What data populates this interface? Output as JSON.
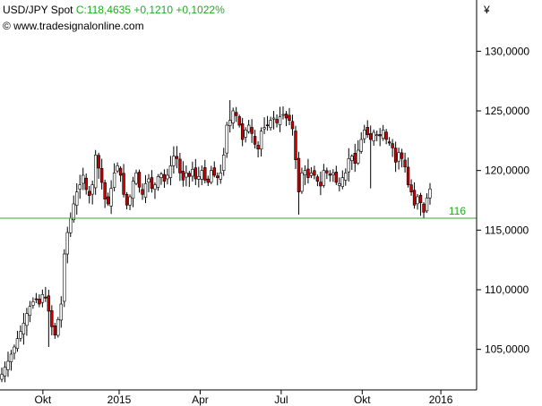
{
  "header": {
    "symbol": "USD/JPY Spot",
    "quote": "C:118,4635 +0,1210 +0,1022%",
    "source": "© www.tradesignalonline.com",
    "currency_symbol": "¥"
  },
  "colors": {
    "up_candle": "#ffffff",
    "down_candle": "#cc0000",
    "wick": "#000000",
    "support_line": "#33aa33",
    "support_label": "#22aa22",
    "axis": "#000000"
  },
  "chart_data": {
    "type": "candlestick",
    "title": "USD/JPY Spot",
    "ylabel": "",
    "xlabel": "",
    "ylim": [
      101.6,
      134.3
    ],
    "y_ticks": [
      {
        "value": 105,
        "label": "105,0000"
      },
      {
        "value": 110,
        "label": "110,0000"
      },
      {
        "value": 115,
        "label": "115,0000"
      },
      {
        "value": 120,
        "label": "120,0000"
      },
      {
        "value": 125,
        "label": "125,0000"
      },
      {
        "value": 130,
        "label": "130,0000"
      }
    ],
    "x_ticks": [
      {
        "pos": 0.09,
        "label": "Okt"
      },
      {
        "pos": 0.25,
        "label": "2015"
      },
      {
        "pos": 0.42,
        "label": "Apr"
      },
      {
        "pos": 0.59,
        "label": "Jul"
      },
      {
        "pos": 0.76,
        "label": "Okt"
      },
      {
        "pos": 0.925,
        "label": "2016"
      }
    ],
    "support_level": {
      "value": 116,
      "label": "116"
    },
    "last_close": 118.46,
    "closes": [
      102.9,
      103.5,
      104.0,
      104.6,
      105.2,
      105.9,
      106.5,
      107.2,
      108.0,
      108.6,
      109.0,
      109.2,
      108.8,
      109.6,
      109.3,
      108.2,
      106.9,
      106.2,
      107.5,
      108.8,
      113.0,
      114.8,
      116.0,
      117.2,
      118.2,
      118.8,
      119.6,
      118.4,
      117.9,
      118.8,
      121.3,
      120.2,
      119.0,
      117.6,
      117.2,
      118.5,
      119.8,
      120.4,
      119.6,
      118.0,
      117.1,
      117.8,
      119.1,
      119.8,
      118.6,
      118.0,
      118.9,
      119.3,
      118.5,
      118.8,
      119.5,
      119.7,
      119.1,
      119.6,
      120.4,
      121.2,
      121.0,
      119.8,
      119.2,
      119.8,
      119.5,
      120.1,
      119.3,
      119.5,
      120.0,
      119.2,
      119.0,
      120.0,
      119.6,
      119.4,
      119.8,
      121.3,
      123.8,
      124.2,
      125.0,
      124.6,
      123.8,
      122.6,
      123.4,
      123.8,
      123.1,
      122.2,
      121.8,
      123.3,
      123.6,
      123.8,
      124.2,
      124.4,
      124.0,
      124.5,
      124.7,
      124.4,
      124.2,
      123.5,
      120.9,
      118.2,
      119.8,
      120.0,
      119.4,
      119.8,
      119.6,
      119.1,
      118.7,
      120.0,
      119.8,
      119.6,
      119.8,
      119.0,
      118.9,
      119.4,
      119.8,
      121.0,
      121.2,
      120.6,
      121.7,
      122.6,
      123.4,
      123.0,
      122.6,
      123.2,
      123.0,
      122.9,
      123.4,
      122.6,
      122.3,
      121.9,
      120.7,
      121.5,
      121.0,
      120.3,
      118.8,
      118.2,
      117.1,
      117.8,
      117.3,
      116.5,
      117.7,
      118.46
    ]
  }
}
